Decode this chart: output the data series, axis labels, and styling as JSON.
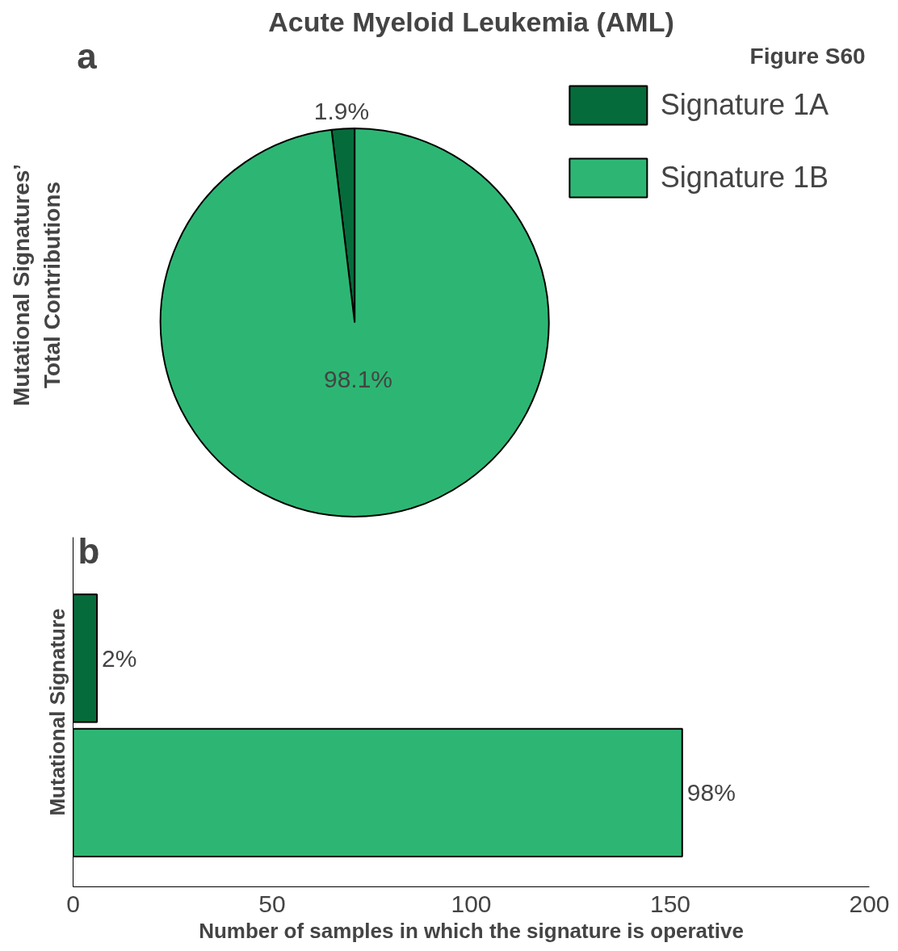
{
  "chart_data": [
    {
      "type": "pie",
      "title": "Acute Myeloid Leukemia (AML)",
      "ylabel": "Mutational Signatures’\nTotal Contributions",
      "annotations": [
        "a",
        "Figure S60"
      ],
      "categories": [
        "Signature 1A",
        "Signature 1B"
      ],
      "values": [
        1.9,
        98.1
      ],
      "colors": [
        "#066b3a",
        "#2db673"
      ],
      "value_labels": [
        "1.9%",
        "98.1%"
      ],
      "legend": "top right"
    },
    {
      "type": "bar",
      "orientation": "horizontal",
      "annotations": [
        "b",
        {
          "text": "2%",
          "x": 6
        },
        {
          "text": "98%",
          "x": 153
        }
      ],
      "ylabel": "Mutational Signature",
      "xlabel": "Number of samples in which the signature is operative",
      "categories": [
        null,
        null
      ],
      "values": [
        6,
        153
      ],
      "colors": [
        "#066b3a",
        "#2db673"
      ],
      "xlim": [
        0,
        200
      ],
      "xticks": [
        0,
        50,
        100,
        150,
        200
      ]
    }
  ]
}
